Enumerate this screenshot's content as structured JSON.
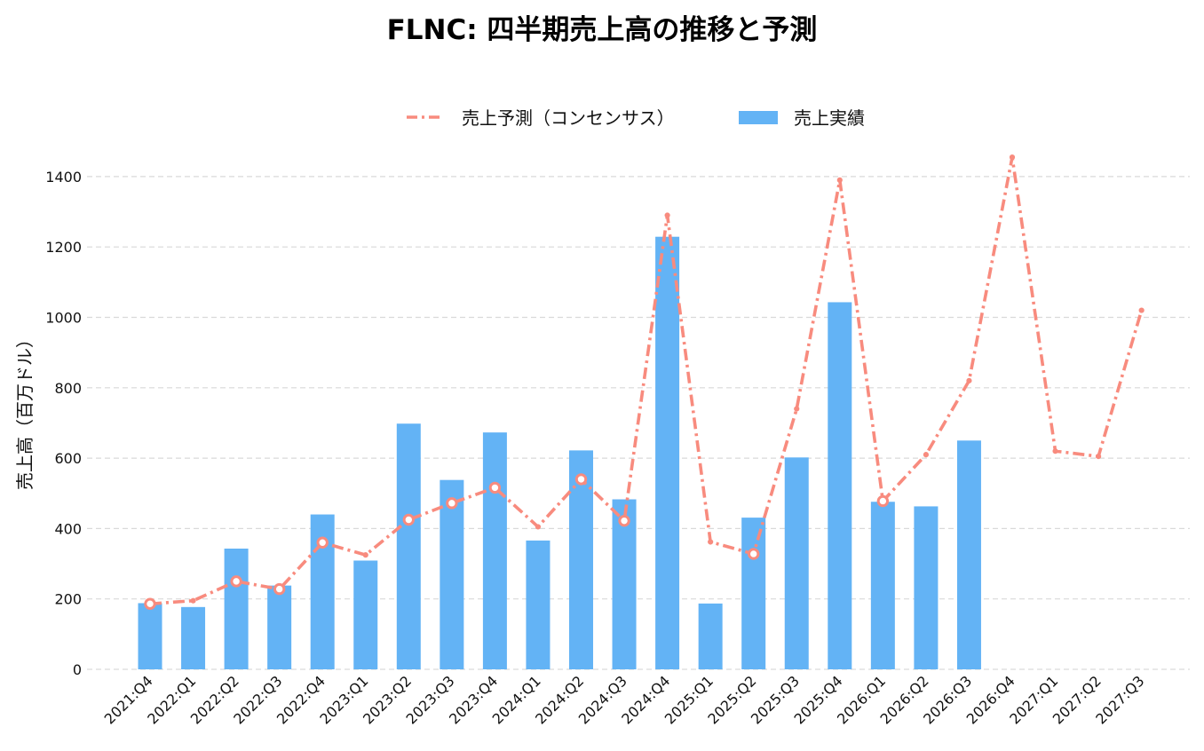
{
  "chart_data": {
    "type": "bar",
    "title": "FLNC: 四半期売上高の推移と予測",
    "ylabel": "売上高（百万ドル）",
    "xlabel": "",
    "ylim": [
      0,
      1480
    ],
    "yticks": [
      0,
      200,
      400,
      600,
      800,
      1000,
      1200,
      1400
    ],
    "grid": true,
    "legend_position": "top-center",
    "categories": [
      "2021:Q4",
      "2022:Q1",
      "2022:Q2",
      "2022:Q3",
      "2022:Q4",
      "2023:Q1",
      "2023:Q2",
      "2023:Q3",
      "2023:Q4",
      "2024:Q1",
      "2024:Q2",
      "2024:Q3",
      "2024:Q4",
      "2025:Q1",
      "2025:Q2",
      "2025:Q3",
      "2025:Q4",
      "2026:Q1",
      "2026:Q2",
      "2026:Q3",
      "2026:Q4",
      "2027:Q1",
      "2027:Q2",
      "2027:Q3"
    ],
    "series": [
      {
        "name": "売上予測（コンセンサス）",
        "kind": "line",
        "color": "#F88B7E",
        "values": [
          186,
          195,
          250,
          228,
          360,
          325,
          425,
          472,
          516,
          405,
          540,
          422,
          1290,
          362,
          328,
          740,
          1390,
          478,
          610,
          820,
          1455,
          620,
          605,
          1020
        ],
        "markers": [
          true,
          false,
          true,
          true,
          true,
          false,
          true,
          true,
          true,
          false,
          true,
          true,
          false,
          false,
          true,
          false,
          false,
          true,
          false,
          false,
          false,
          false,
          false,
          false
        ]
      },
      {
        "name": "売上実績",
        "kind": "bar",
        "color": "#63B3F5",
        "values": [
          188,
          177,
          343,
          238,
          440,
          309,
          698,
          538,
          673,
          366,
          622,
          483,
          1229,
          187,
          431,
          602,
          1043,
          476,
          463,
          650,
          null,
          null,
          null,
          null
        ]
      }
    ]
  }
}
